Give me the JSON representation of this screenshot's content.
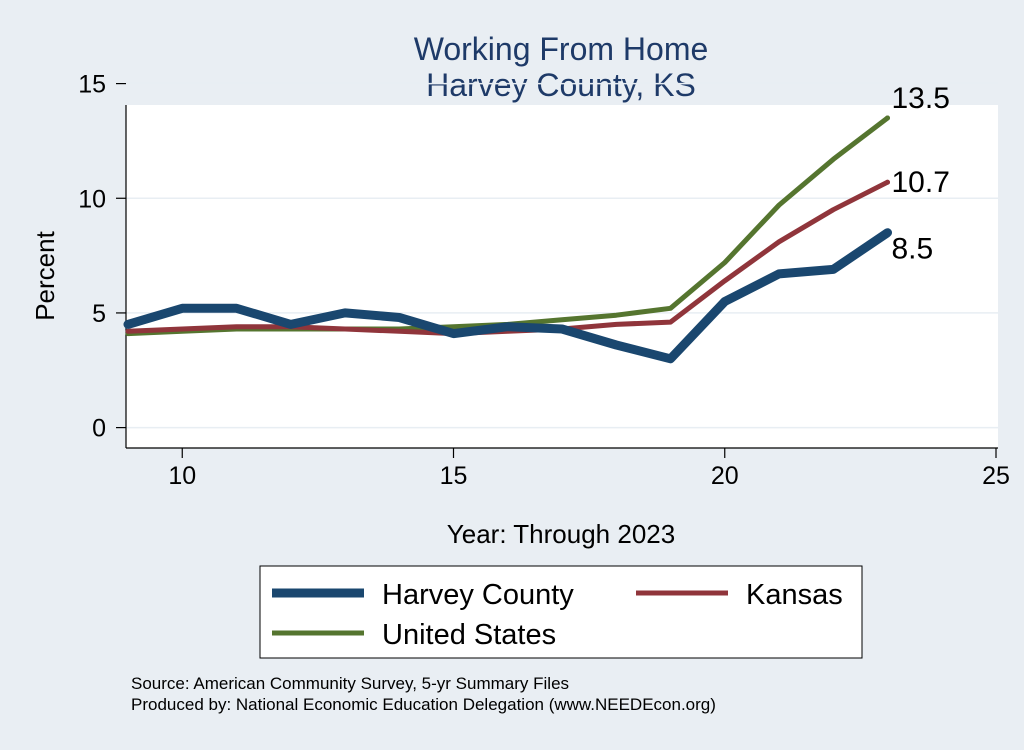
{
  "chart_data": {
    "type": "line",
    "title": "Working From Home",
    "subtitle": "Harvey County, KS",
    "xlabel": "Year: Through 2023",
    "ylabel": "Percent",
    "xlim": [
      9,
      25
    ],
    "ylim": [
      0,
      15
    ],
    "xticks": [
      "10",
      "15",
      "20",
      "25"
    ],
    "yticks": [
      "0",
      "5",
      "10",
      "15"
    ],
    "grid": true,
    "legend_position": "bottom",
    "x": [
      9,
      10,
      11,
      12,
      13,
      14,
      15,
      16,
      17,
      18,
      19,
      20,
      21,
      22,
      23
    ],
    "series": [
      {
        "name": "Harvey County",
        "color": "#1a476f",
        "values": [
          4.5,
          5.2,
          5.2,
          4.5,
          5.0,
          4.8,
          4.1,
          4.4,
          4.3,
          3.6,
          3.0,
          5.5,
          6.7,
          6.9,
          8.5
        ],
        "end_label": "8.5"
      },
      {
        "name": "Kansas",
        "color": "#90353b",
        "values": [
          4.2,
          4.3,
          4.4,
          4.4,
          4.3,
          4.2,
          4.1,
          4.2,
          4.3,
          4.5,
          4.6,
          6.4,
          8.1,
          9.5,
          10.7
        ],
        "end_label": "10.7"
      },
      {
        "name": "United States",
        "color": "#55752f",
        "values": [
          4.1,
          4.2,
          4.3,
          4.3,
          4.3,
          4.3,
          4.4,
          4.5,
          4.7,
          4.9,
          5.2,
          7.2,
          9.7,
          11.7,
          13.5
        ],
        "end_label": "13.5"
      }
    ]
  },
  "footer": {
    "source": "Source: American Community Survey, 5-yr Summary Files",
    "produced_by": "Produced by: National Economic Education Delegation (www.NEEDEcon.org)"
  }
}
